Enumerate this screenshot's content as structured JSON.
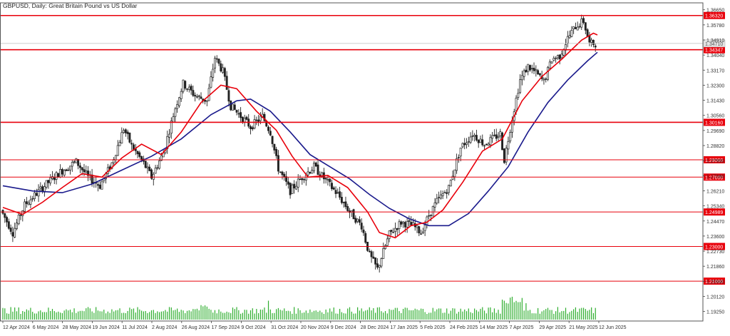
{
  "chart_data": {
    "type": "candlestick",
    "title": "GBPUSD, Daily:  Great Britain Pound vs US Dollar",
    "ylim": [
      1.187,
      1.3705
    ],
    "y_ticks": [
      "1.36650",
      "1.35780",
      "1.34910",
      "1.34040",
      "1.33170",
      "1.32300",
      "1.31430",
      "1.30560",
      "1.29690",
      "1.28820",
      "1.27950",
      "1.27080",
      "1.26210",
      "1.25340",
      "1.24470",
      "1.23600",
      "1.22730",
      "1.21860",
      "1.20990",
      "1.20120",
      "1.19250"
    ],
    "x_ticks": [
      "12 Apr 2024",
      "6 May 2024",
      "28 May 2024",
      "19 Jun 2024",
      "11 Jul 2024",
      "2 Aug 2024",
      "26 Aug 2024",
      "17 Sep 2024",
      "9 Oct 2024",
      "31 Oct 2024",
      "20 Nov 2024",
      "9 Dec 2024",
      "28 Dec 2024",
      "17 Jan 2025",
      "5 Feb 2025",
      "24 Feb 2025",
      "14 Mar 2025",
      "7 Apr 2025",
      "29 Apr 2025",
      "21 May 2025",
      "12 Jun 2025"
    ],
    "x_range": [
      0,
      300
    ],
    "levels": [
      {
        "value": 1.3632,
        "label": "1.36320"
      },
      {
        "value": 1.34347,
        "label": "1.34347"
      },
      {
        "value": 1.3016,
        "label": "1.30160"
      },
      {
        "value": 1.28,
        "label": "1.28000"
      },
      {
        "value": 1.27,
        "label": "1.27000"
      },
      {
        "value": 1.24989,
        "label": "1.24989"
      },
      {
        "value": 1.23,
        "label": "1.23000"
      },
      {
        "value": 1.21,
        "label": "1.21000"
      }
    ],
    "current_price": {
      "value": 1.3471,
      "label": "1.34710"
    },
    "price_keyframes": [
      [
        0,
        1.251
      ],
      [
        6,
        1.238
      ],
      [
        12,
        1.254
      ],
      [
        22,
        1.265
      ],
      [
        30,
        1.273
      ],
      [
        38,
        1.279
      ],
      [
        44,
        1.27
      ],
      [
        50,
        1.265
      ],
      [
        56,
        1.278
      ],
      [
        62,
        1.298
      ],
      [
        66,
        1.288
      ],
      [
        72,
        1.278
      ],
      [
        76,
        1.27
      ],
      [
        82,
        1.284
      ],
      [
        88,
        1.31
      ],
      [
        92,
        1.324
      ],
      [
        98,
        1.317
      ],
      [
        104,
        1.314
      ],
      [
        108,
        1.339
      ],
      [
        112,
        1.331
      ],
      [
        116,
        1.311
      ],
      [
        122,
        1.304
      ],
      [
        126,
        1.299
      ],
      [
        132,
        1.305
      ],
      [
        136,
        1.296
      ],
      [
        140,
        1.275
      ],
      [
        146,
        1.262
      ],
      [
        152,
        1.27
      ],
      [
        158,
        1.276
      ],
      [
        164,
        1.268
      ],
      [
        170,
        1.26
      ],
      [
        176,
        1.25
      ],
      [
        182,
        1.242
      ],
      [
        186,
        1.225
      ],
      [
        190,
        1.217
      ],
      [
        196,
        1.237
      ],
      [
        202,
        1.244
      ],
      [
        208,
        1.242
      ],
      [
        212,
        1.238
      ],
      [
        216,
        1.248
      ],
      [
        220,
        1.256
      ],
      [
        226,
        1.264
      ],
      [
        232,
        1.287
      ],
      [
        238,
        1.295
      ],
      [
        244,
        1.289
      ],
      [
        248,
        1.292
      ],
      [
        252,
        1.295
      ],
      [
        254,
        1.28
      ],
      [
        258,
        1.304
      ],
      [
        262,
        1.326
      ],
      [
        266,
        1.334
      ],
      [
        270,
        1.33
      ],
      [
        274,
        1.325
      ],
      [
        278,
        1.338
      ],
      [
        282,
        1.34
      ],
      [
        286,
        1.35
      ],
      [
        290,
        1.357
      ],
      [
        294,
        1.36
      ],
      [
        297,
        1.347
      ],
      [
        300,
        1.3471
      ]
    ],
    "ma_fast": {
      "name": "",
      "color": "#e8000b",
      "points": [
        [
          0,
          1.2525
        ],
        [
          10,
          1.2485
        ],
        [
          20,
          1.2555
        ],
        [
          30,
          1.264
        ],
        [
          40,
          1.272
        ],
        [
          50,
          1.27
        ],
        [
          60,
          1.281
        ],
        [
          70,
          1.289
        ],
        [
          80,
          1.283
        ],
        [
          90,
          1.296
        ],
        [
          100,
          1.313
        ],
        [
          110,
          1.323
        ],
        [
          118,
          1.321
        ],
        [
          128,
          1.308
        ],
        [
          138,
          1.297
        ],
        [
          146,
          1.282
        ],
        [
          154,
          1.27
        ],
        [
          164,
          1.271
        ],
        [
          174,
          1.264
        ],
        [
          184,
          1.25
        ],
        [
          190,
          1.238
        ],
        [
          198,
          1.235
        ],
        [
          206,
          1.242
        ],
        [
          214,
          1.244
        ],
        [
          222,
          1.251
        ],
        [
          232,
          1.267
        ],
        [
          242,
          1.285
        ],
        [
          252,
          1.292
        ],
        [
          262,
          1.314
        ],
        [
          272,
          1.328
        ],
        [
          282,
          1.338
        ],
        [
          292,
          1.349
        ],
        [
          298,
          1.353
        ],
        [
          300,
          1.352
        ]
      ]
    },
    "ma_slow": {
      "name": "",
      "color": "#1a1a8c",
      "points": [
        [
          0,
          1.265
        ],
        [
          15,
          1.262
        ],
        [
          30,
          1.261
        ],
        [
          45,
          1.266
        ],
        [
          60,
          1.274
        ],
        [
          75,
          1.282
        ],
        [
          90,
          1.292
        ],
        [
          105,
          1.306
        ],
        [
          118,
          1.314
        ],
        [
          125,
          1.315
        ],
        [
          135,
          1.308
        ],
        [
          145,
          1.296
        ],
        [
          155,
          1.283
        ],
        [
          165,
          1.276
        ],
        [
          175,
          1.269
        ],
        [
          185,
          1.26
        ],
        [
          195,
          1.252
        ],
        [
          205,
          1.246
        ],
        [
          215,
          1.242
        ],
        [
          225,
          1.242
        ],
        [
          235,
          1.249
        ],
        [
          245,
          1.262
        ],
        [
          255,
          1.276
        ],
        [
          265,
          1.296
        ],
        [
          275,
          1.313
        ],
        [
          285,
          1.326
        ],
        [
          295,
          1.337
        ],
        [
          300,
          1.342
        ]
      ]
    },
    "volume_range": [
      0,
      120
    ],
    "colors": {
      "background": "#ffffff",
      "candles": "#222222",
      "volume": "#2fae2f",
      "level": "#e8000b",
      "axis": "#444444"
    }
  }
}
